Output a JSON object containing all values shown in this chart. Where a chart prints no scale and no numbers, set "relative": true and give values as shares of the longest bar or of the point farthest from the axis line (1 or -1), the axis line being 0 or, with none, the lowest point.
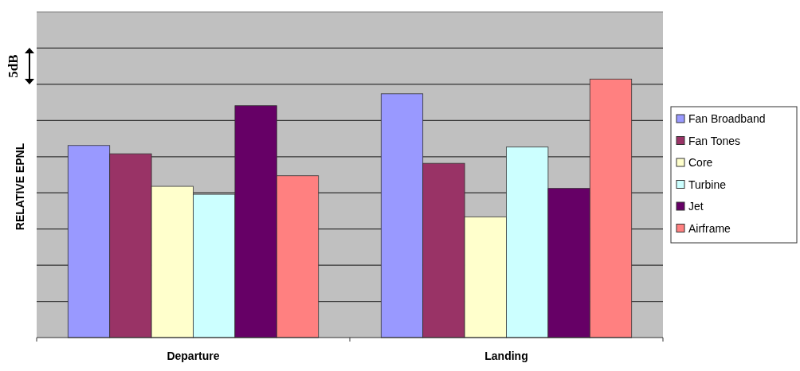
{
  "chart_data": {
    "type": "bar",
    "relative": true,
    "ylabel": "RELATIVE EPNL",
    "annotations": [
      "5dB"
    ],
    "categories": [
      "Departure",
      "Landing"
    ],
    "grid": true,
    "legend": "right",
    "series": [
      {
        "name": "Fan Broadband",
        "color": "#9999ff",
        "values": [
          0.743,
          0.943
        ]
      },
      {
        "name": "Fan Tones",
        "color": "#993366",
        "values": [
          0.711,
          0.674
        ]
      },
      {
        "name": "Core",
        "color": "#ffffcc",
        "values": [
          0.585,
          0.467
        ]
      },
      {
        "name": "Turbine",
        "color": "#ccffff",
        "values": [
          0.554,
          0.737
        ]
      },
      {
        "name": "Jet",
        "color": "#660066",
        "values": [
          0.897,
          0.577
        ]
      },
      {
        "name": "Airframe",
        "color": "#ff8080",
        "values": [
          0.626,
          1
        ]
      }
    ]
  }
}
